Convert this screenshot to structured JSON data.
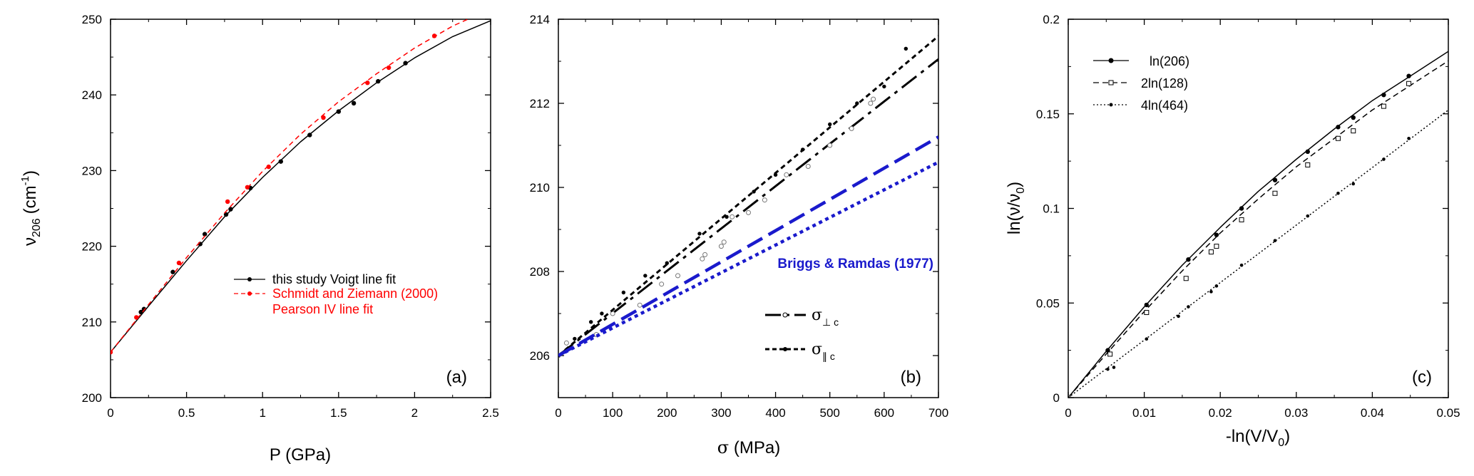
{
  "chart_data": [
    {
      "type": "line",
      "panel_label": "(a)",
      "xlabel": "P (GPa)",
      "ylabel": "ν206 (cm-1)",
      "ylabel_main": "ν",
      "ylabel_sub": "206",
      "ylabel_unit_open": "(cm",
      "ylabel_unit_sup": "-1",
      "ylabel_unit_close": ")",
      "xlim": [
        0,
        2.5
      ],
      "ylim": [
        200,
        250
      ],
      "xticks": [
        0,
        0.5,
        1,
        1.5,
        2,
        2.5
      ],
      "xtick_labels": [
        "0",
        "0.5",
        "1",
        "1.5",
        "2",
        "2.5"
      ],
      "yticks": [
        200,
        210,
        220,
        230,
        240,
        250
      ],
      "ytick_labels": [
        "200",
        "210",
        "220",
        "230",
        "240",
        "250"
      ],
      "legend_position": "right-center",
      "legend": [
        {
          "text": "this study Voigt line fit",
          "color": "#000000"
        },
        {
          "text": "Schmidt and Ziemann (2000)",
          "color": "#ff0000"
        },
        {
          "text": "Pearson IV line fit",
          "color": "#ff0000"
        }
      ],
      "series": [
        {
          "name": "this study Voigt line fit",
          "color": "#000000",
          "dash": "",
          "marker": "filled-circle",
          "points": [
            [
              0.2,
              211.3
            ],
            [
              0.22,
              211.7
            ],
            [
              0.41,
              216.6
            ],
            [
              0.59,
              220.3
            ],
            [
              0.62,
              221.6
            ],
            [
              0.76,
              224.2
            ],
            [
              0.79,
              224.9
            ],
            [
              0.92,
              227.7
            ],
            [
              1.12,
              231.2
            ],
            [
              1.31,
              234.7
            ],
            [
              1.5,
              237.8
            ],
            [
              1.6,
              238.9
            ],
            [
              1.76,
              241.8
            ],
            [
              1.94,
              244.2
            ]
          ],
          "fit": [
            [
              0,
              206.0
            ],
            [
              0.25,
              212.1
            ],
            [
              0.5,
              218.1
            ],
            [
              0.75,
              223.9
            ],
            [
              1.0,
              229.1
            ],
            [
              1.25,
              233.8
            ],
            [
              1.5,
              237.9
            ],
            [
              1.75,
              241.6
            ],
            [
              2.0,
              244.9
            ],
            [
              2.25,
              247.7
            ],
            [
              2.5,
              249.8
            ]
          ]
        },
        {
          "name": "Schmidt and Ziemann (2000)",
          "color": "#ff0000",
          "dash": "7,5",
          "marker": "filled-circle",
          "points": [
            [
              0,
              206.0
            ],
            [
              0.17,
              210.6
            ],
            [
              0.45,
              217.8
            ],
            [
              0.77,
              225.9
            ],
            [
              0.9,
              227.8
            ],
            [
              1.04,
              230.5
            ],
            [
              1.4,
              237.0
            ],
            [
              1.69,
              241.6
            ],
            [
              1.83,
              243.6
            ],
            [
              2.13,
              247.8
            ]
          ],
          "fit": [
            [
              0,
              206.0
            ],
            [
              0.25,
              212.3
            ],
            [
              0.5,
              218.5
            ],
            [
              0.75,
              224.4
            ],
            [
              1.0,
              229.9
            ],
            [
              1.25,
              234.8
            ],
            [
              1.5,
              239.1
            ],
            [
              1.75,
              242.8
            ],
            [
              2.0,
              246.2
            ],
            [
              2.25,
              249.1
            ],
            [
              2.35,
              250.0
            ]
          ]
        }
      ]
    },
    {
      "type": "scatter",
      "panel_label": "(b)",
      "xlabel": "σ (MPa)",
      "xlabel_symbol": "σ",
      "xlabel_rest": " (MPa)",
      "ylabel": "",
      "xlim": [
        0,
        700
      ],
      "ylim": [
        205,
        214
      ],
      "xticks": [
        0,
        100,
        200,
        300,
        400,
        500,
        600,
        700
      ],
      "xtick_labels": [
        "0",
        "100",
        "200",
        "300",
        "400",
        "500",
        "600",
        "700"
      ],
      "yticks": [
        206,
        208,
        210,
        212,
        214
      ],
      "ytick_labels": [
        "206",
        "208",
        "210",
        "212",
        "214"
      ],
      "annotation": "Briggs & Ramdas (1977)",
      "annotation_color": "#0000cc",
      "legend_position": "lower-right",
      "legend": [
        {
          "symbol": "σ",
          "subscript": "⊥ c",
          "dash": "26,8,5,8",
          "marker": "open-circle"
        },
        {
          "symbol": "σ",
          "subscript": "∥ c",
          "dash": "7,5",
          "marker": "filled-circle"
        }
      ],
      "series": [
        {
          "name": "σ⊥c",
          "color": "#000000",
          "marker": "open-circle",
          "points": [
            [
              0,
              206.0
            ],
            [
              15,
              206.3
            ],
            [
              70,
              206.5
            ],
            [
              100,
              207.0
            ],
            [
              150,
              207.2
            ],
            [
              190,
              207.7
            ],
            [
              220,
              207.9
            ],
            [
              265,
              208.3
            ],
            [
              270,
              208.4
            ],
            [
              300,
              208.6
            ],
            [
              305,
              208.7
            ],
            [
              320,
              209.3
            ],
            [
              350,
              209.4
            ],
            [
              380,
              209.7
            ],
            [
              420,
              210.3
            ],
            [
              460,
              210.5
            ],
            [
              500,
              211.0
            ],
            [
              540,
              211.4
            ],
            [
              575,
              212.0
            ],
            [
              580,
              212.1
            ]
          ],
          "line": [
            [
              0,
              206.0
            ],
            [
              700,
              213.05
            ]
          ]
        },
        {
          "name": "σ∥c",
          "color": "#000000",
          "marker": "filled-circle",
          "points": [
            [
              0,
              206.0
            ],
            [
              30,
              206.4
            ],
            [
              60,
              206.8
            ],
            [
              80,
              207.0
            ],
            [
              120,
              207.5
            ],
            [
              160,
              207.9
            ],
            [
              200,
              208.2
            ],
            [
              260,
              208.9
            ],
            [
              310,
              209.3
            ],
            [
              360,
              209.9
            ],
            [
              400,
              210.3
            ],
            [
              450,
              210.9
            ],
            [
              500,
              211.5
            ],
            [
              550,
              212.0
            ],
            [
              600,
              212.4
            ],
            [
              640,
              213.3
            ]
          ],
          "line": [
            [
              0,
              206.0
            ],
            [
              700,
              213.6
            ]
          ]
        },
        {
          "name": "Briggs & Ramdas (1977) σ⊥c",
          "color": "#1a1acc",
          "dash": "24,10",
          "line": [
            [
              0,
              206.0
            ],
            [
              700,
              211.2
            ]
          ]
        },
        {
          "name": "Briggs & Ramdas (1977) σ∥c",
          "color": "#1a1acc",
          "dash": "5,5",
          "line": [
            [
              0,
              206.0
            ],
            [
              700,
              210.6
            ]
          ]
        }
      ]
    },
    {
      "type": "line",
      "panel_label": "(c)",
      "xlabel": "-ln(V/V0)",
      "xlabel_main": "-ln(V/V",
      "xlabel_sub": "0",
      "xlabel_close": ")",
      "ylabel": "ln(ν/ν0)",
      "ylabel_main": "ln(ν/ν",
      "ylabel_sub": "0",
      "ylabel_close": ")",
      "xlim": [
        0,
        0.05
      ],
      "ylim": [
        0,
        0.2
      ],
      "xticks": [
        0,
        0.01,
        0.02,
        0.03,
        0.04,
        0.05
      ],
      "xtick_labels": [
        "0",
        "0.01",
        "0.02",
        "0.03",
        "0.04",
        "0.05"
      ],
      "yticks": [
        0,
        0.05,
        0.1,
        0.15,
        0.2
      ],
      "ytick_labels": [
        "0",
        "0.05",
        "0.1",
        "0.15",
        "0.2"
      ],
      "legend_position": "top-left",
      "series": [
        {
          "name": "ln(206)",
          "color": "#000000",
          "dash": "",
          "marker": "filled-circle",
          "points": [
            [
              0,
              0
            ],
            [
              0.0052,
              0.025
            ],
            [
              0.0103,
              0.049
            ],
            [
              0.0158,
              0.073
            ],
            [
              0.0195,
              0.086
            ],
            [
              0.0228,
              0.1
            ],
            [
              0.0272,
              0.115
            ],
            [
              0.0315,
              0.13
            ],
            [
              0.0355,
              0.143
            ],
            [
              0.0375,
              0.148
            ],
            [
              0.0415,
              0.16
            ],
            [
              0.0448,
              0.17
            ]
          ],
          "fit": [
            [
              0,
              0
            ],
            [
              0.005,
              0.0245
            ],
            [
              0.01,
              0.048
            ],
            [
              0.015,
              0.07
            ],
            [
              0.02,
              0.09
            ],
            [
              0.025,
              0.109
            ],
            [
              0.03,
              0.126
            ],
            [
              0.035,
              0.142
            ],
            [
              0.04,
              0.157
            ],
            [
              0.045,
              0.17
            ],
            [
              0.05,
              0.183
            ]
          ]
        },
        {
          "name": "2ln(128)",
          "color": "#000000",
          "dash": "8,5",
          "marker": "open-square",
          "points": [
            [
              0,
              0
            ],
            [
              0.0055,
              0.023
            ],
            [
              0.0103,
              0.045
            ],
            [
              0.0155,
              0.063
            ],
            [
              0.0188,
              0.077
            ],
            [
              0.0195,
              0.08
            ],
            [
              0.0228,
              0.094
            ],
            [
              0.0272,
              0.108
            ],
            [
              0.0315,
              0.123
            ],
            [
              0.0355,
              0.137
            ],
            [
              0.0375,
              0.141
            ],
            [
              0.0415,
              0.154
            ],
            [
              0.0448,
              0.166
            ]
          ],
          "fit": [
            [
              0,
              0
            ],
            [
              0.005,
              0.023
            ],
            [
              0.01,
              0.0455
            ],
            [
              0.015,
              0.067
            ],
            [
              0.02,
              0.087
            ],
            [
              0.025,
              0.105
            ],
            [
              0.03,
              0.122
            ],
            [
              0.035,
              0.137
            ],
            [
              0.04,
              0.152
            ],
            [
              0.045,
              0.165
            ],
            [
              0.05,
              0.178
            ]
          ]
        },
        {
          "name": "4ln(464)",
          "color": "#000000",
          "dash": "2,3",
          "marker": "small-filled-diamond",
          "points": [
            [
              0,
              0
            ],
            [
              0.0052,
              0.015
            ],
            [
              0.006,
              0.016
            ],
            [
              0.0103,
              0.031
            ],
            [
              0.0145,
              0.043
            ],
            [
              0.0158,
              0.048
            ],
            [
              0.0188,
              0.056
            ],
            [
              0.0195,
              0.059
            ],
            [
              0.0228,
              0.07
            ],
            [
              0.0272,
              0.083
            ],
            [
              0.0315,
              0.096
            ],
            [
              0.0355,
              0.108
            ],
            [
              0.0375,
              0.113
            ],
            [
              0.0415,
              0.126
            ],
            [
              0.0448,
              0.137
            ]
          ],
          "fit": [
            [
              0,
              0
            ],
            [
              0.005,
              0.0152
            ],
            [
              0.01,
              0.0304
            ],
            [
              0.015,
              0.0456
            ],
            [
              0.02,
              0.0608
            ],
            [
              0.025,
              0.076
            ],
            [
              0.03,
              0.0912
            ],
            [
              0.035,
              0.1064
            ],
            [
              0.04,
              0.1216
            ],
            [
              0.045,
              0.1368
            ],
            [
              0.05,
              0.152
            ]
          ]
        }
      ]
    }
  ]
}
